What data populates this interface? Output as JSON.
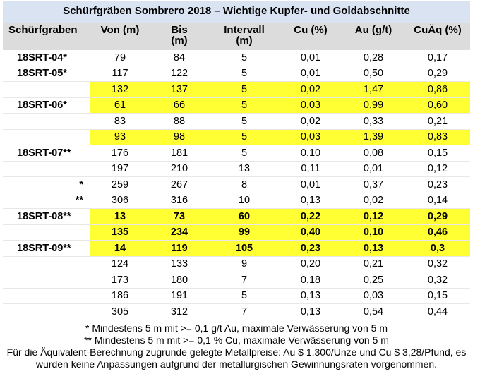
{
  "title": "Schürfgräben Sombrero 2018 – Wichtige Kupfer- und Goldabschnitte",
  "headers": [
    "Schürfgraben",
    "Von (m)",
    "Bis\n(m)",
    "Intervall\n(m)",
    "Cu (%)",
    "Au (g/t)",
    "CuÄq (%)"
  ],
  "rows": [
    {
      "trench": "18SRT-04*",
      "from": "79",
      "to": "84",
      "interval": "5",
      "cu": "0,01",
      "au": "0,28",
      "cueq": "0,17",
      "highlight": false,
      "bold": false
    },
    {
      "trench": "18SRT-05*",
      "from": "117",
      "to": "122",
      "interval": "5",
      "cu": "0,01",
      "au": "0,50",
      "cueq": "0,29",
      "highlight": false,
      "bold": false
    },
    {
      "trench": "",
      "from": "132",
      "to": "137",
      "interval": "5",
      "cu": "0,02",
      "au": "1,47",
      "cueq": "0,86",
      "highlight": true,
      "bold": false
    },
    {
      "trench": "18SRT-06*",
      "from": "61",
      "to": "66",
      "interval": "5",
      "cu": "0,03",
      "au": "0,99",
      "cueq": "0,60",
      "highlight": true,
      "bold": false
    },
    {
      "trench": "",
      "from": "83",
      "to": "88",
      "interval": "5",
      "cu": "0,02",
      "au": "0,33",
      "cueq": "0,21",
      "highlight": false,
      "bold": false
    },
    {
      "trench": "",
      "from": "93",
      "to": "98",
      "interval": "5",
      "cu": "0,03",
      "au": "1,39",
      "cueq": "0,83",
      "highlight": true,
      "bold": false
    },
    {
      "trench": "18SRT-07**",
      "from": "176",
      "to": "181",
      "interval": "5",
      "cu": "0,10",
      "au": "0,08",
      "cueq": "0,15",
      "highlight": false,
      "bold": false
    },
    {
      "trench": "",
      "from": "197",
      "to": "210",
      "interval": "13",
      "cu": "0,11",
      "au": "0,01",
      "cueq": "0,12",
      "highlight": false,
      "bold": false
    },
    {
      "trench": "*",
      "from": "259",
      "to": "267",
      "interval": "8",
      "cu": "0,01",
      "au": "0,37",
      "cueq": "0,23",
      "highlight": false,
      "bold": false
    },
    {
      "trench": "**",
      "from": "306",
      "to": "316",
      "interval": "10",
      "cu": "0,13",
      "au": "0,02",
      "cueq": "0,14",
      "highlight": false,
      "bold": false
    },
    {
      "trench": "18SRT-08**",
      "from": "13",
      "to": "73",
      "interval": "60",
      "cu": "0,22",
      "au": "0,12",
      "cueq": "0,29",
      "highlight": true,
      "bold": true
    },
    {
      "trench": "",
      "from": "135",
      "to": "234",
      "interval": "99",
      "cu": "0,40",
      "au": "0,10",
      "cueq": "0,46",
      "highlight": true,
      "bold": true
    },
    {
      "trench": "18SRT-09**",
      "from": "14",
      "to": "119",
      "interval": "105",
      "cu": "0,23",
      "au": "0,13",
      "cueq": "0,3",
      "highlight": true,
      "bold": true
    },
    {
      "trench": "",
      "from": "124",
      "to": "133",
      "interval": "9",
      "cu": "0,20",
      "au": "0,21",
      "cueq": "0,32",
      "highlight": false,
      "bold": false
    },
    {
      "trench": "",
      "from": "173",
      "to": "180",
      "interval": "7",
      "cu": "0,18",
      "au": "0,25",
      "cueq": "0,32",
      "highlight": false,
      "bold": false
    },
    {
      "trench": "",
      "from": "186",
      "to": "191",
      "interval": "5",
      "cu": "0,13",
      "au": "0,03",
      "cueq": "0,15",
      "highlight": false,
      "bold": false
    },
    {
      "trench": "",
      "from": "305",
      "to": "312",
      "interval": "7",
      "cu": "0,13",
      "au": "0,54",
      "cueq": "0,44",
      "highlight": false,
      "bold": false
    }
  ],
  "notes": [
    "*  Mindestens 5 m mit >= 0,1 g/t Au, maximale Verwässerung von 5 m",
    "** Mindestens 5 m mit >= 0,1 % Cu, maximale Verwässerung von 5 m",
    "Für die Äquivalent-Berechnung zugrunde gelegte Metallpreise: Au $ 1.300/Unze und Cu $ 3,28/Pfund, es wurden keine Anpassungen aufgrund der metallurgischen Gewinnungsraten vorgenommen."
  ],
  "colors": {
    "title_bg": "#d9e3f2",
    "header_bg": "#dcdcdc",
    "highlight": "#ffff33"
  }
}
